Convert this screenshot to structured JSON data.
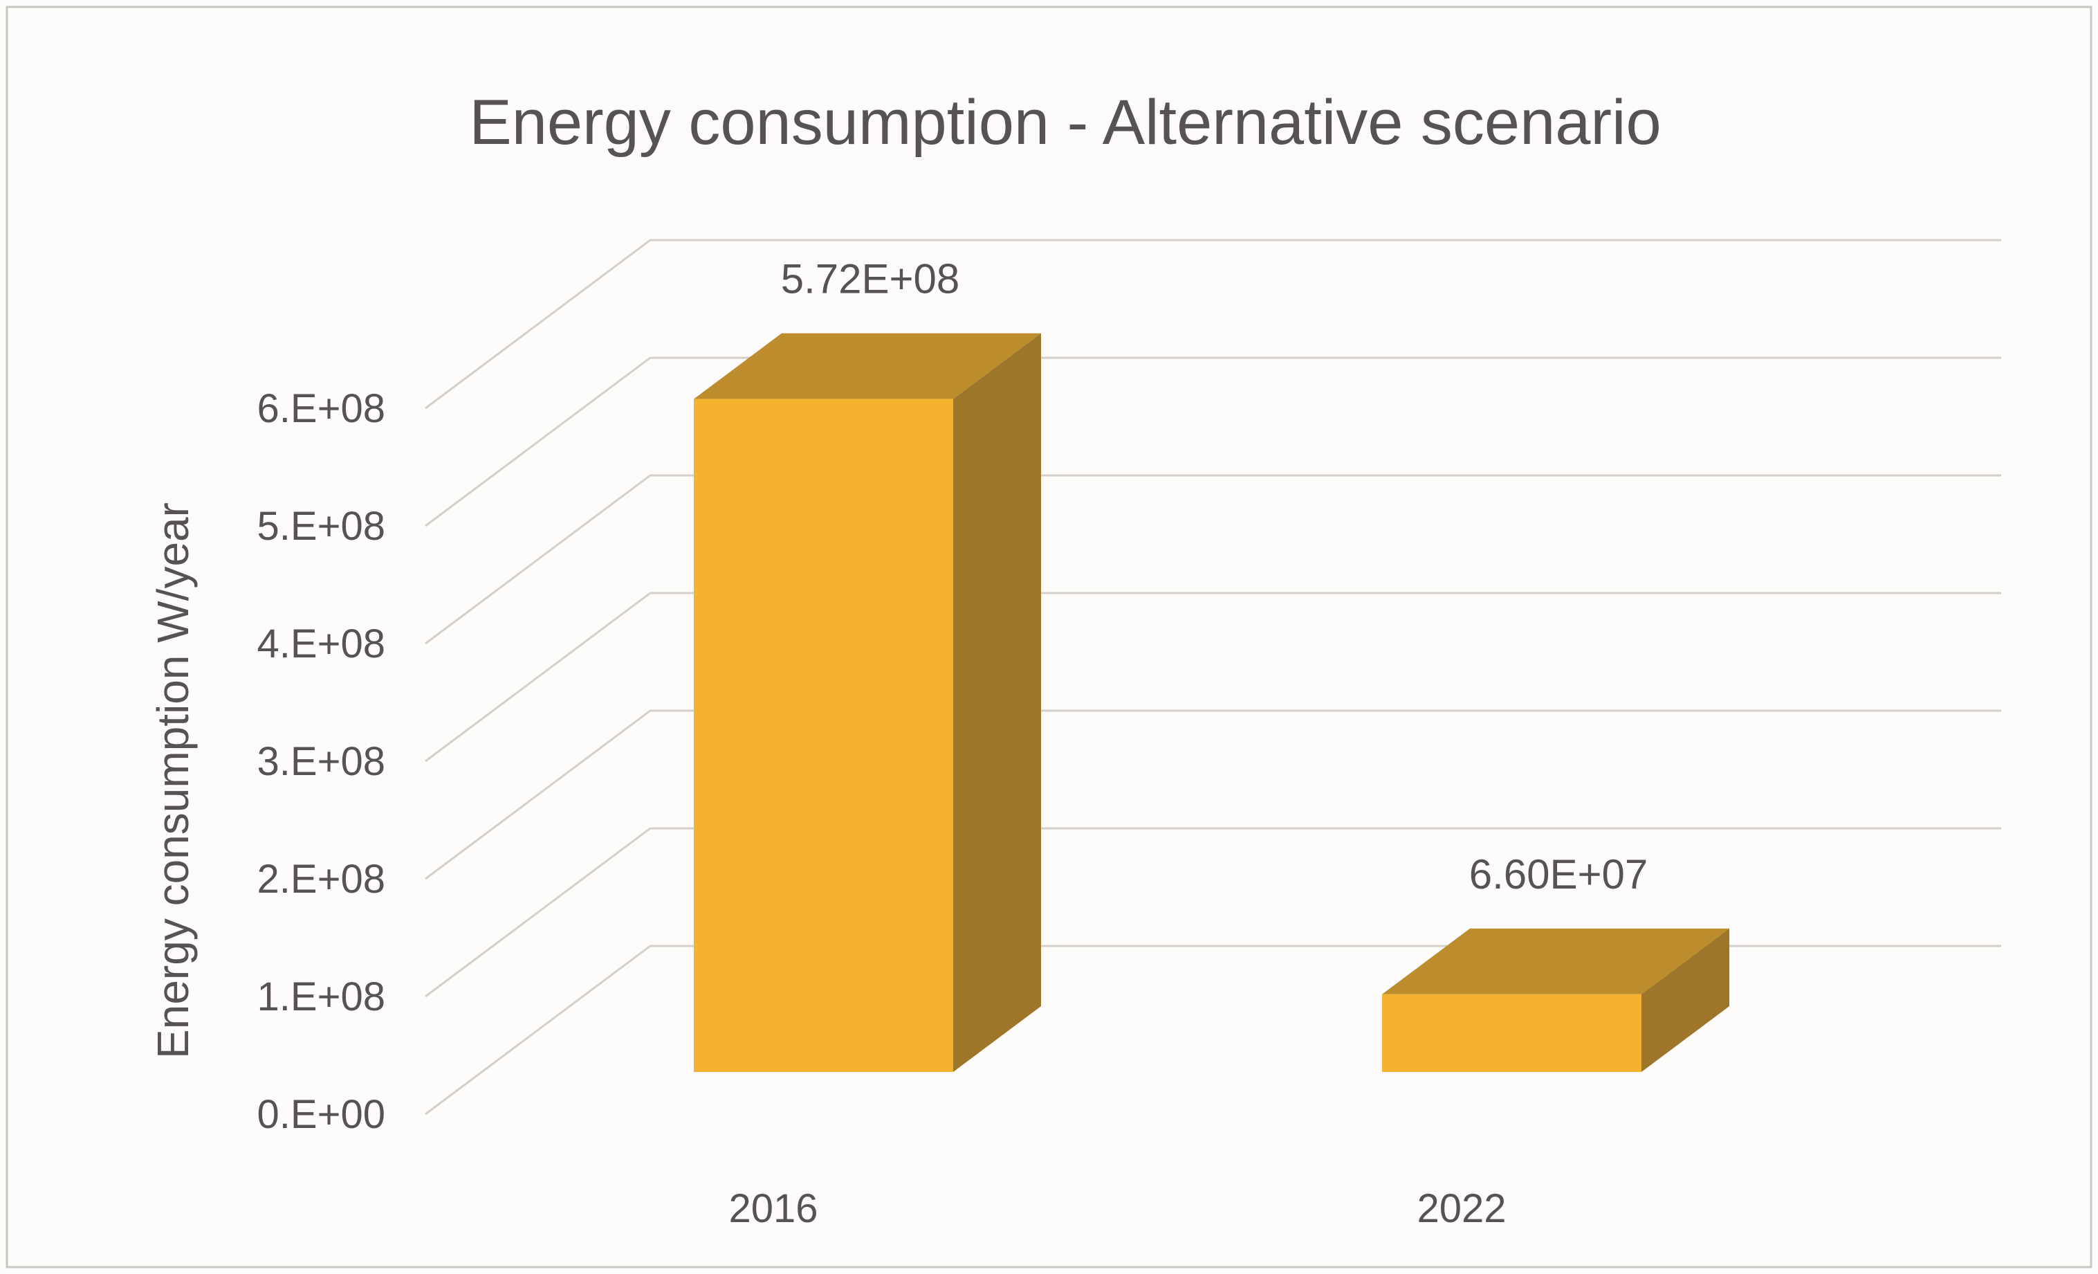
{
  "chart_data": {
    "type": "bar",
    "style_3d": true,
    "title": "Energy consumption - Alternative scenario",
    "xlabel": "",
    "ylabel": "Energy consumption W/year",
    "categories": [
      "2016",
      "2022"
    ],
    "values": [
      572000000,
      66000000
    ],
    "value_labels": [
      "5.72E+08",
      "6.60E+07"
    ],
    "series": [
      {
        "name": "Energy consumption",
        "values": [
          572000000,
          66000000
        ]
      }
    ],
    "ylim": [
      0,
      600000000
    ],
    "ytick_step": 100000000,
    "ytick_labels": [
      "0.E+00",
      "1.E+08",
      "2.E+08",
      "3.E+08",
      "4.E+08",
      "5.E+08",
      "6.E+08"
    ],
    "grid": true,
    "legend": false
  },
  "colors": {
    "bar_front": "#F5B22E",
    "bar_top": "#BD8C2C",
    "bar_side": "#9D762A",
    "gridline": "#D5CFC9",
    "text": "#595254",
    "background": "#FDFCFA",
    "border": "#C8C6C3"
  }
}
